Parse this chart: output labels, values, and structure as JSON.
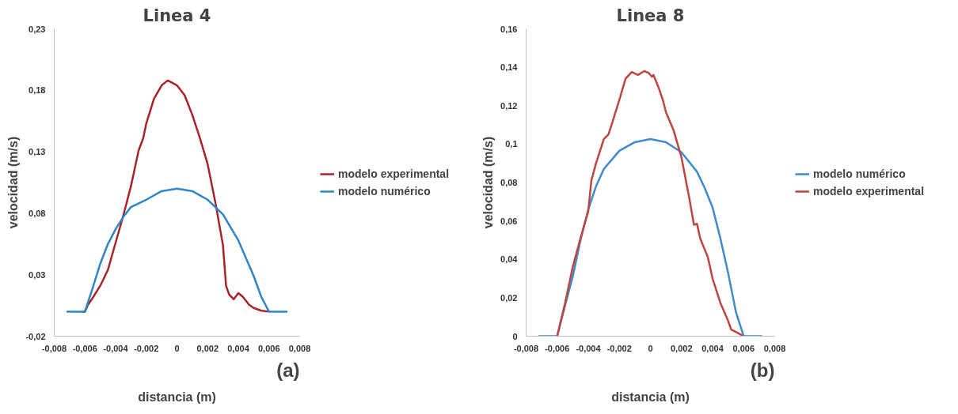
{
  "chart_data": [
    {
      "type": "line",
      "title": "Linea 4",
      "xlabel": "distancia (m)",
      "ylabel": "velocidad (m/s)",
      "annotations": [
        "(a)"
      ],
      "xlim": [
        -0.008,
        0.008
      ],
      "ylim": [
        -0.02,
        0.23
      ],
      "xticks": [
        {
          "value": -0.008,
          "label": "-0,008"
        },
        {
          "value": -0.006,
          "label": "-0,006"
        },
        {
          "value": -0.004,
          "label": "-0,004"
        },
        {
          "value": -0.002,
          "label": "-0,002"
        },
        0,
        {
          "value": 0.002,
          "label": "0,002"
        },
        {
          "value": 0.004,
          "label": "0,004"
        },
        {
          "value": 0.006,
          "label": "0,006"
        },
        {
          "value": 0.008,
          "label": "0,008"
        }
      ],
      "yticks": [
        {
          "value": -0.02,
          "label": "-0,02"
        },
        {
          "value": 0.03,
          "label": "0,03"
        },
        {
          "value": 0.08,
          "label": "0,08"
        },
        {
          "value": 0.13,
          "label": "0,13"
        },
        {
          "value": 0.18,
          "label": "0,18"
        },
        {
          "value": 0.23,
          "label": "0,23"
        }
      ],
      "grid": false,
      "legend": "right",
      "series": [
        {
          "name": "modelo experimental",
          "color": "#a8232b",
          "x": [
            -0.0062,
            -0.006,
            -0.0058,
            -0.0055,
            -0.005,
            -0.0045,
            -0.004,
            -0.0035,
            -0.003,
            -0.0025,
            -0.0022,
            -0.002,
            -0.0015,
            -0.001,
            -0.0006,
            -0.0003,
            0,
            0.0005,
            0.001,
            0.0015,
            0.002,
            0.0025,
            0.003,
            0.0032,
            0.0034,
            0.0037,
            0.004,
            0.0043,
            0.0047,
            0.005,
            0.0055,
            0.006
          ],
          "values": [
            0,
            0,
            0.0055,
            0.011,
            0.021,
            0.034,
            0.056,
            0.078,
            0.102,
            0.131,
            0.141,
            0.153,
            0.173,
            0.184,
            0.188,
            0.186,
            0.184,
            0.176,
            0.16,
            0.141,
            0.12,
            0.089,
            0.054,
            0.021,
            0.014,
            0.01,
            0.015,
            0.012,
            0.0055,
            0.003,
            0.0007,
            0
          ]
        },
        {
          "name": "modelo numérico",
          "color": "#2f86c6",
          "x": [
            -0.0072,
            -0.006,
            -0.0055,
            -0.005,
            -0.0045,
            -0.004,
            -0.0035,
            -0.003,
            -0.002,
            -0.001,
            0,
            0.001,
            0.002,
            0.003,
            0.004,
            0.005,
            0.0055,
            0.006,
            0.0072
          ],
          "values": [
            0,
            0,
            0.019,
            0.039,
            0.055,
            0.067,
            0.077,
            0.085,
            0.091,
            0.098,
            0.1,
            0.098,
            0.091,
            0.079,
            0.058,
            0.029,
            0.012,
            0,
            0
          ]
        }
      ]
    },
    {
      "type": "line",
      "title": "Linea 8",
      "xlabel": "distancia (m)",
      "ylabel": "velocidad (m/s)",
      "annotations": [
        "(b)"
      ],
      "xlim": [
        -0.008,
        0.008
      ],
      "ylim": [
        0,
        0.16
      ],
      "xticks": [
        {
          "value": -0.008,
          "label": "-0,008"
        },
        {
          "value": -0.006,
          "label": "-0,006"
        },
        {
          "value": -0.004,
          "label": "-0,004"
        },
        {
          "value": -0.002,
          "label": "-0,002"
        },
        0,
        {
          "value": 0.002,
          "label": "0,002"
        },
        {
          "value": 0.004,
          "label": "0,004"
        },
        {
          "value": 0.006,
          "label": "0,006"
        },
        {
          "value": 0.008,
          "label": "0,008"
        }
      ],
      "yticks": [
        0,
        {
          "value": 0.02,
          "label": "0,02"
        },
        {
          "value": 0.04,
          "label": "0,04"
        },
        {
          "value": 0.06,
          "label": "0,06"
        },
        {
          "value": 0.08,
          "label": "0,08"
        },
        {
          "value": 0.1,
          "label": "0,1"
        },
        {
          "value": 0.12,
          "label": "0,12"
        },
        {
          "value": 0.14,
          "label": "0,14"
        },
        {
          "value": 0.16,
          "label": "0,16"
        }
      ],
      "grid": false,
      "legend": "right",
      "series": [
        {
          "name": "modelo numérico",
          "color": "#3d8bcb",
          "x": [
            -0.0072,
            -0.006,
            -0.0055,
            -0.005,
            -0.0045,
            -0.004,
            -0.0035,
            -0.003,
            -0.002,
            -0.001,
            0,
            0.001,
            0.002,
            0.003,
            0.0035,
            0.004,
            0.0045,
            0.005,
            0.0055,
            0.006,
            0.0072
          ],
          "values": [
            0,
            0,
            0.0158,
            0.031,
            0.05,
            0.066,
            0.078,
            0.087,
            0.0965,
            0.101,
            0.1026,
            0.101,
            0.0957,
            0.0856,
            0.077,
            0.067,
            0.051,
            0.033,
            0.0127,
            0,
            0
          ]
        },
        {
          "name": "modelo experimental",
          "color": "#c0443f",
          "x": [
            -0.006,
            -0.0055,
            -0.005,
            -0.0045,
            -0.004,
            -0.0038,
            -0.0035,
            -0.003,
            -0.0027,
            -0.0025,
            -0.002,
            -0.0016,
            -0.0012,
            -0.0008,
            -0.0004,
            -0.0001,
            0.0001,
            0.0002,
            0.0005,
            0.0008,
            0.001,
            0.0015,
            0.002,
            0.0025,
            0.0028,
            0.003,
            0.0032,
            0.0037,
            0.004,
            0.0045,
            0.005,
            0.0052,
            0.0055,
            0.006
          ],
          "values": [
            0,
            0.017,
            0.036,
            0.051,
            0.065,
            0.081,
            0.09,
            0.1026,
            0.105,
            0.11,
            0.123,
            0.134,
            0.1375,
            0.136,
            0.138,
            0.137,
            0.135,
            0.136,
            0.13,
            0.123,
            0.1166,
            0.107,
            0.093,
            0.072,
            0.058,
            0.0585,
            0.051,
            0.041,
            0.03,
            0.0174,
            0.008,
            0.0034,
            0.0022,
            0
          ]
        }
      ]
    }
  ]
}
